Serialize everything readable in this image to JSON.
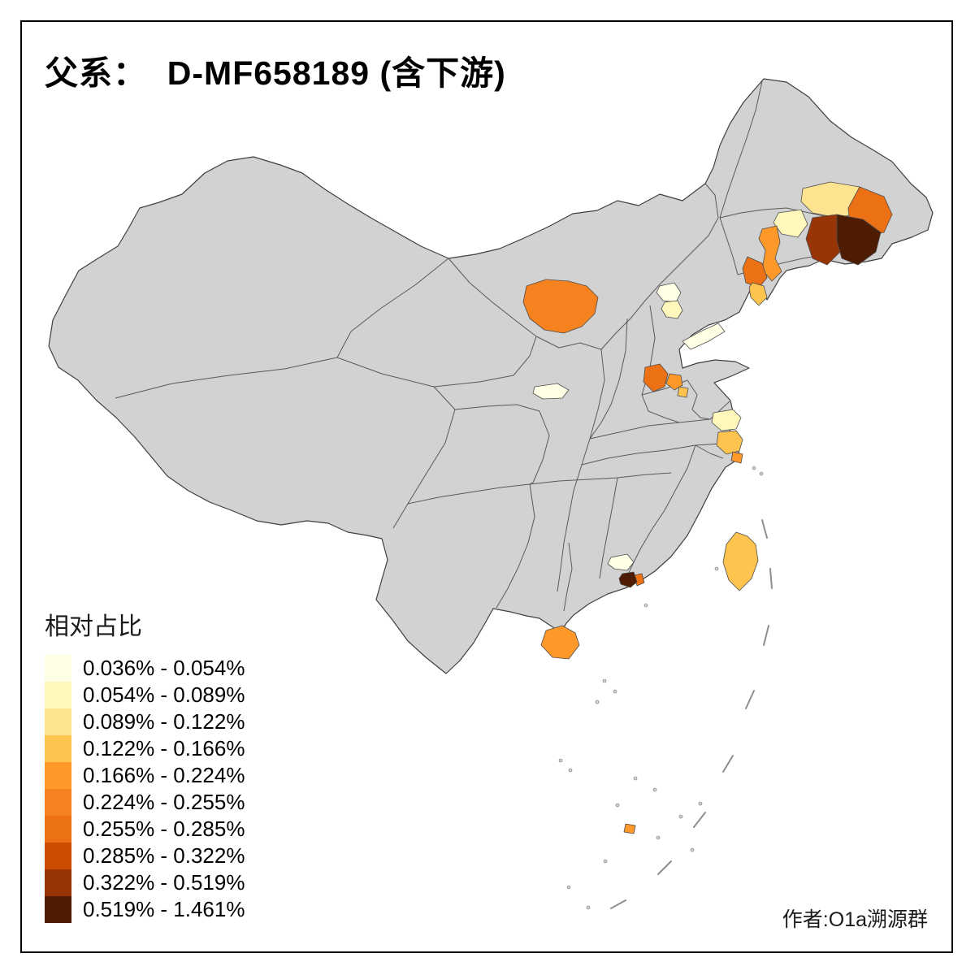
{
  "title": "父系：  D-MF658189 (含下游)",
  "legend": {
    "title": "相对占比",
    "bins": [
      {
        "label": "0.036% - 0.054%",
        "color": "#FFFFE5"
      },
      {
        "label": "0.054% - 0.089%",
        "color": "#FFF7BC"
      },
      {
        "label": "0.089% - 0.122%",
        "color": "#FEE391"
      },
      {
        "label": "0.122% - 0.166%",
        "color": "#FEC44F"
      },
      {
        "label": "0.166% - 0.224%",
        "color": "#FE9929"
      },
      {
        "label": "0.224% - 0.255%",
        "color": "#F5821F"
      },
      {
        "label": "0.255% - 0.285%",
        "color": "#EC7014"
      },
      {
        "label": "0.285% - 0.322%",
        "color": "#CC4C02"
      },
      {
        "label": "0.322% - 0.519%",
        "color": "#993404"
      },
      {
        "label": "0.519% - 1.461%",
        "color": "#4D1C03"
      }
    ]
  },
  "credit": "作者:O1a溯源群",
  "map": {
    "base_color": "#D2D2D2",
    "boundary_color": "#4D4D4D",
    "sea_color": "#FFFFFF",
    "regions": {
      "heilongjiang-north-patch": {
        "bin": 3
      },
      "heilongjiang-east-patch": {
        "bin": 7
      },
      "jilin-central-pale": {
        "bin": 2
      },
      "jilin-east-dark": {
        "bin": 9
      },
      "jilin-far-east-darkest": {
        "bin": 10
      },
      "jilin-west-strip": {
        "bin": 5
      },
      "liaoning-orange": {
        "bin": 7
      },
      "liaodong-light": {
        "bin": 4
      },
      "inner-mongolia-blob": {
        "bin": 6
      },
      "beijing-pale-1": {
        "bin": 1
      },
      "beijing-pale-2": {
        "bin": 2
      },
      "hebei-coast-pale": {
        "bin": 1
      },
      "shaanxi-pale": {
        "bin": 1
      },
      "shandong-west-orange": {
        "bin": 7
      },
      "shandong-mid-orange": {
        "bin": 5
      },
      "shandong-small-light": {
        "bin": 4
      },
      "jiangsu-north-pale": {
        "bin": 2
      },
      "jiangsu-south-light": {
        "bin": 4
      },
      "shanghai-orange": {
        "bin": 5
      },
      "taiwan": {
        "bin": 4
      },
      "guangdong-pale": {
        "bin": 1
      },
      "pearl-delta-dark": {
        "bin": 10
      },
      "pearl-delta-orange": {
        "bin": 7
      },
      "hainan": {
        "bin": 5
      },
      "south-sea-island": {
        "bin": 5
      }
    }
  },
  "chart_data": {
    "type": "heatmap",
    "title": "父系：  D-MF658189 (含下游)",
    "legend_title": "相对占比",
    "bins": [
      "0.036% - 0.054%",
      "0.054% - 0.089%",
      "0.089% - 0.122%",
      "0.122% - 0.166%",
      "0.166% - 0.224%",
      "0.224% - 0.255%",
      "0.255% - 0.285%",
      "0.285% - 0.322%",
      "0.322% - 0.519%",
      "0.519% - 1.461%"
    ],
    "colors": [
      "#FFFFE5",
      "#FFF7BC",
      "#FEE391",
      "#FEC44F",
      "#FE9929",
      "#F5821F",
      "#EC7014",
      "#CC4C02",
      "#993404",
      "#4D1C03"
    ]
  }
}
